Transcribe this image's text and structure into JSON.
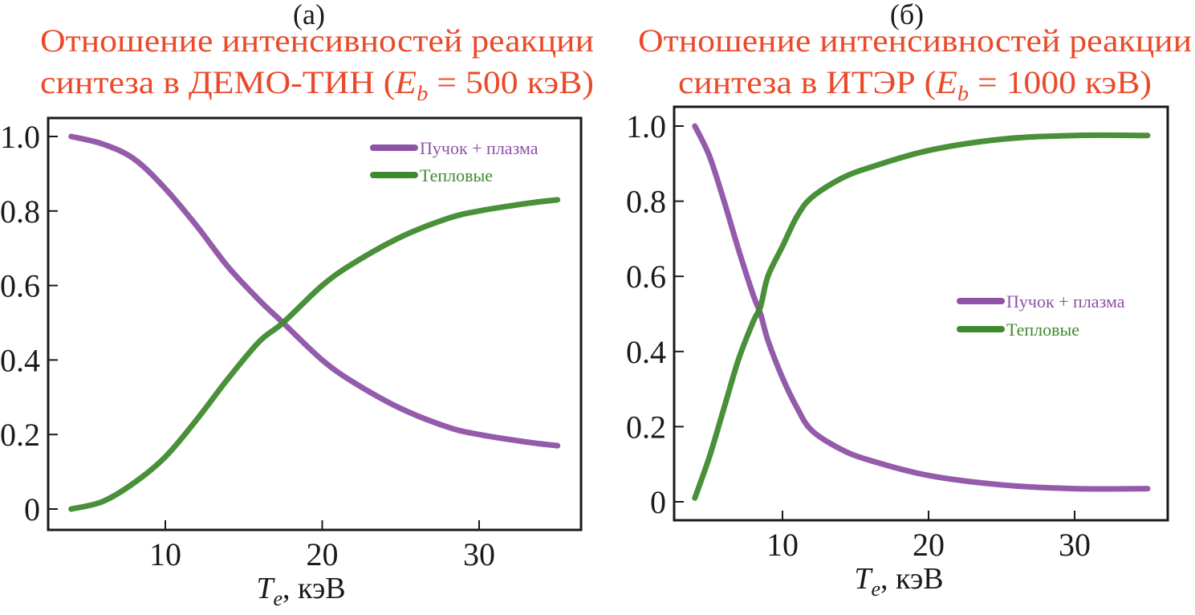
{
  "chart_data": [
    {
      "type": "line",
      "panel_label": "(а)",
      "title_line1": "Отношение интенсивностей реакции",
      "title_line2_prefix": "синтеза в ДЕМО-ТИН (",
      "title_var": "E",
      "title_sub": "b",
      "title_line2_suffix": " = 500 кэВ)",
      "xlabel_var": "T",
      "xlabel_sub": "e",
      "xlabel_unit": ", кэВ",
      "ylabel": "",
      "xlim": [
        3,
        37
      ],
      "ylim": [
        -0.05,
        1.05
      ],
      "xticks": [
        "10",
        "20",
        "30"
      ],
      "yticks": [
        "0",
        "0.2",
        "0.4",
        "0.6",
        "0.8",
        "1.0"
      ],
      "grid": false,
      "legend_position": "top-right",
      "series": [
        {
          "name": "Пучок + плазма",
          "color": "#8e52a6",
          "x": [
            4,
            6,
            8,
            10,
            12,
            14,
            16,
            17.5,
            20,
            22,
            25,
            28,
            30,
            33,
            35
          ],
          "y": [
            1.0,
            0.98,
            0.94,
            0.86,
            0.76,
            0.65,
            0.56,
            0.5,
            0.4,
            0.34,
            0.27,
            0.22,
            0.2,
            0.18,
            0.17
          ]
        },
        {
          "name": "Тепловые",
          "color": "#3f8a2e",
          "x": [
            4,
            6,
            8,
            10,
            12,
            14,
            16,
            17.5,
            20,
            22,
            25,
            28,
            30,
            33,
            35
          ],
          "y": [
            0.0,
            0.02,
            0.07,
            0.14,
            0.24,
            0.35,
            0.45,
            0.5,
            0.6,
            0.66,
            0.73,
            0.78,
            0.8,
            0.82,
            0.83
          ]
        }
      ]
    },
    {
      "type": "line",
      "panel_label": "(б)",
      "title_line1": "Отношение интенсивностей реакции",
      "title_line2_prefix": "синтеза в ИТЭР (",
      "title_var": "E",
      "title_sub": "b",
      "title_line2_suffix": " = 1000 кэВ)",
      "xlabel_var": "T",
      "xlabel_sub": "e",
      "xlabel_unit": ", кэВ",
      "ylabel": "",
      "xlim": [
        2.5,
        36.5
      ],
      "ylim": [
        -0.05,
        1.05
      ],
      "xticks": [
        "10",
        "20",
        "30"
      ],
      "yticks": [
        "0",
        "0.2",
        "0.4",
        "0.6",
        "0.8",
        "1.0"
      ],
      "grid": false,
      "legend_position": "center-right",
      "series": [
        {
          "name": "Пучок + плазма",
          "color": "#8e52a6",
          "x": [
            4,
            5,
            6,
            7,
            8,
            8.5,
            9,
            10,
            11,
            12,
            14,
            16,
            20,
            25,
            30,
            35
          ],
          "y": [
            1.0,
            0.92,
            0.8,
            0.67,
            0.55,
            0.5,
            0.43,
            0.33,
            0.25,
            0.19,
            0.14,
            0.11,
            0.07,
            0.045,
            0.035,
            0.035
          ]
        },
        {
          "name": "Тепловые",
          "color": "#3f8a2e",
          "x": [
            4,
            5,
            6,
            7,
            8,
            8.5,
            9,
            10,
            11,
            12,
            14,
            16,
            20,
            25,
            30,
            35
          ],
          "y": [
            0.01,
            0.12,
            0.25,
            0.38,
            0.48,
            0.52,
            0.6,
            0.68,
            0.76,
            0.81,
            0.86,
            0.89,
            0.935,
            0.965,
            0.975,
            0.975
          ]
        }
      ]
    }
  ],
  "colors": {
    "title": "#ea4a2a",
    "axis": "#1a1a1a"
  }
}
